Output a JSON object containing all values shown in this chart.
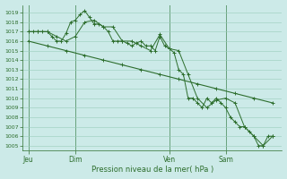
{
  "bg_color": "#cceae8",
  "grid_color": "#99ccbb",
  "line_color": "#2d6e2d",
  "ylabel_text": "Pression niveau de la mer( hPa )",
  "ylim": [
    1004.5,
    1019.8
  ],
  "yticks": [
    1005,
    1006,
    1007,
    1008,
    1009,
    1010,
    1011,
    1012,
    1013,
    1014,
    1015,
    1016,
    1017,
    1018,
    1019
  ],
  "xtick_labels": [
    "Jeu",
    "Dim",
    "Ven",
    "Sam"
  ],
  "xtick_positions": [
    0,
    2.5,
    7.5,
    10.5
  ],
  "xmin": -0.3,
  "xmax": 13.5,
  "series1_x": [
    0,
    0.25,
    0.5,
    0.75,
    1.0,
    1.25,
    1.5,
    1.75,
    2.0,
    2.25,
    2.5,
    2.75,
    3.0,
    3.25,
    3.5,
    3.75,
    4.0,
    4.25,
    4.5,
    4.75,
    5.0,
    5.25,
    5.5,
    5.75,
    6.0,
    6.25,
    6.5,
    6.75,
    7.0,
    7.25,
    7.5,
    7.75,
    8.0,
    8.25,
    8.5,
    8.75,
    9.0,
    9.25,
    9.5,
    9.75,
    10.0,
    10.25,
    10.5,
    10.75,
    11.0,
    11.25,
    11.5,
    11.75,
    12.0,
    12.25,
    12.5,
    12.75,
    13.0
  ],
  "series1_y": [
    1017,
    1017,
    1017,
    1017,
    1017,
    1016.5,
    1016,
    1016,
    1016.8,
    1018,
    1018.2,
    1018.8,
    1019.2,
    1018.5,
    1017.8,
    1017.8,
    1017.5,
    1017,
    1016,
    1016,
    1016,
    1015.8,
    1015.5,
    1015.8,
    1016,
    1015.5,
    1015.5,
    1015,
    1016.5,
    1015.5,
    1015.2,
    1014.8,
    1013,
    1012.5,
    1010,
    1010,
    1009.5,
    1009,
    1010,
    1009.5,
    1010,
    1009.5,
    1009,
    1008,
    1007.5,
    1007,
    1007,
    1006.5,
    1006,
    1005,
    1005,
    1006,
    1006
  ],
  "series2_x": [
    0,
    0.5,
    1.0,
    1.5,
    2.0,
    2.5,
    3.0,
    3.5,
    4.0,
    4.5,
    5.0,
    5.5,
    6.0,
    6.5,
    7.0,
    7.5,
    8.0,
    8.5,
    9.0,
    9.5,
    10.0,
    10.5,
    11.0,
    11.5,
    12.0,
    12.5,
    13.0
  ],
  "series2_y": [
    1017,
    1017,
    1017,
    1016.5,
    1016,
    1016.5,
    1018,
    1018.2,
    1017.5,
    1017.5,
    1016,
    1016,
    1015.5,
    1015,
    1016.7,
    1015.2,
    1015.0,
    1012.5,
    1010,
    1009,
    1009.8,
    1010,
    1009.5,
    1007,
    1006,
    1005,
    1006
  ],
  "series3_x": [
    0,
    1.0,
    2.0,
    3.0,
    4.0,
    5.0,
    6.0,
    7.0,
    8.0,
    9.0,
    10.0,
    11.0,
    12.0,
    13.0
  ],
  "series3_y": [
    1016,
    1015.5,
    1015.0,
    1014.5,
    1014.0,
    1013.5,
    1013.0,
    1012.5,
    1012.0,
    1011.5,
    1011.0,
    1010.5,
    1010.0,
    1009.5
  ]
}
